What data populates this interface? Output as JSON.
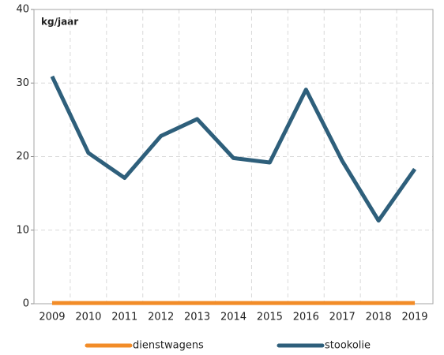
{
  "chart_data": {
    "type": "line",
    "annotations": [
      "kg/jaar"
    ],
    "categories": [
      "2009",
      "2010",
      "2011",
      "2012",
      "2013",
      "2014",
      "2015",
      "2016",
      "2017",
      "2018",
      "2019"
    ],
    "series": [
      {
        "name": "dienstwagens",
        "color": "#f28c28",
        "values": [
          0.1,
          0.1,
          0.1,
          0.1,
          0.1,
          0.1,
          0.1,
          0.1,
          0.1,
          0.1,
          0.1
        ]
      },
      {
        "name": "stookolie",
        "color": "#2e5f7b",
        "values": [
          30.9,
          20.5,
          17.1,
          22.8,
          25.1,
          19.8,
          19.2,
          29.1,
          19.4,
          11.3,
          18.3
        ]
      }
    ],
    "ylim": [
      0,
      40
    ],
    "yticks": [
      0,
      10,
      20,
      30,
      40
    ],
    "grid": true
  }
}
